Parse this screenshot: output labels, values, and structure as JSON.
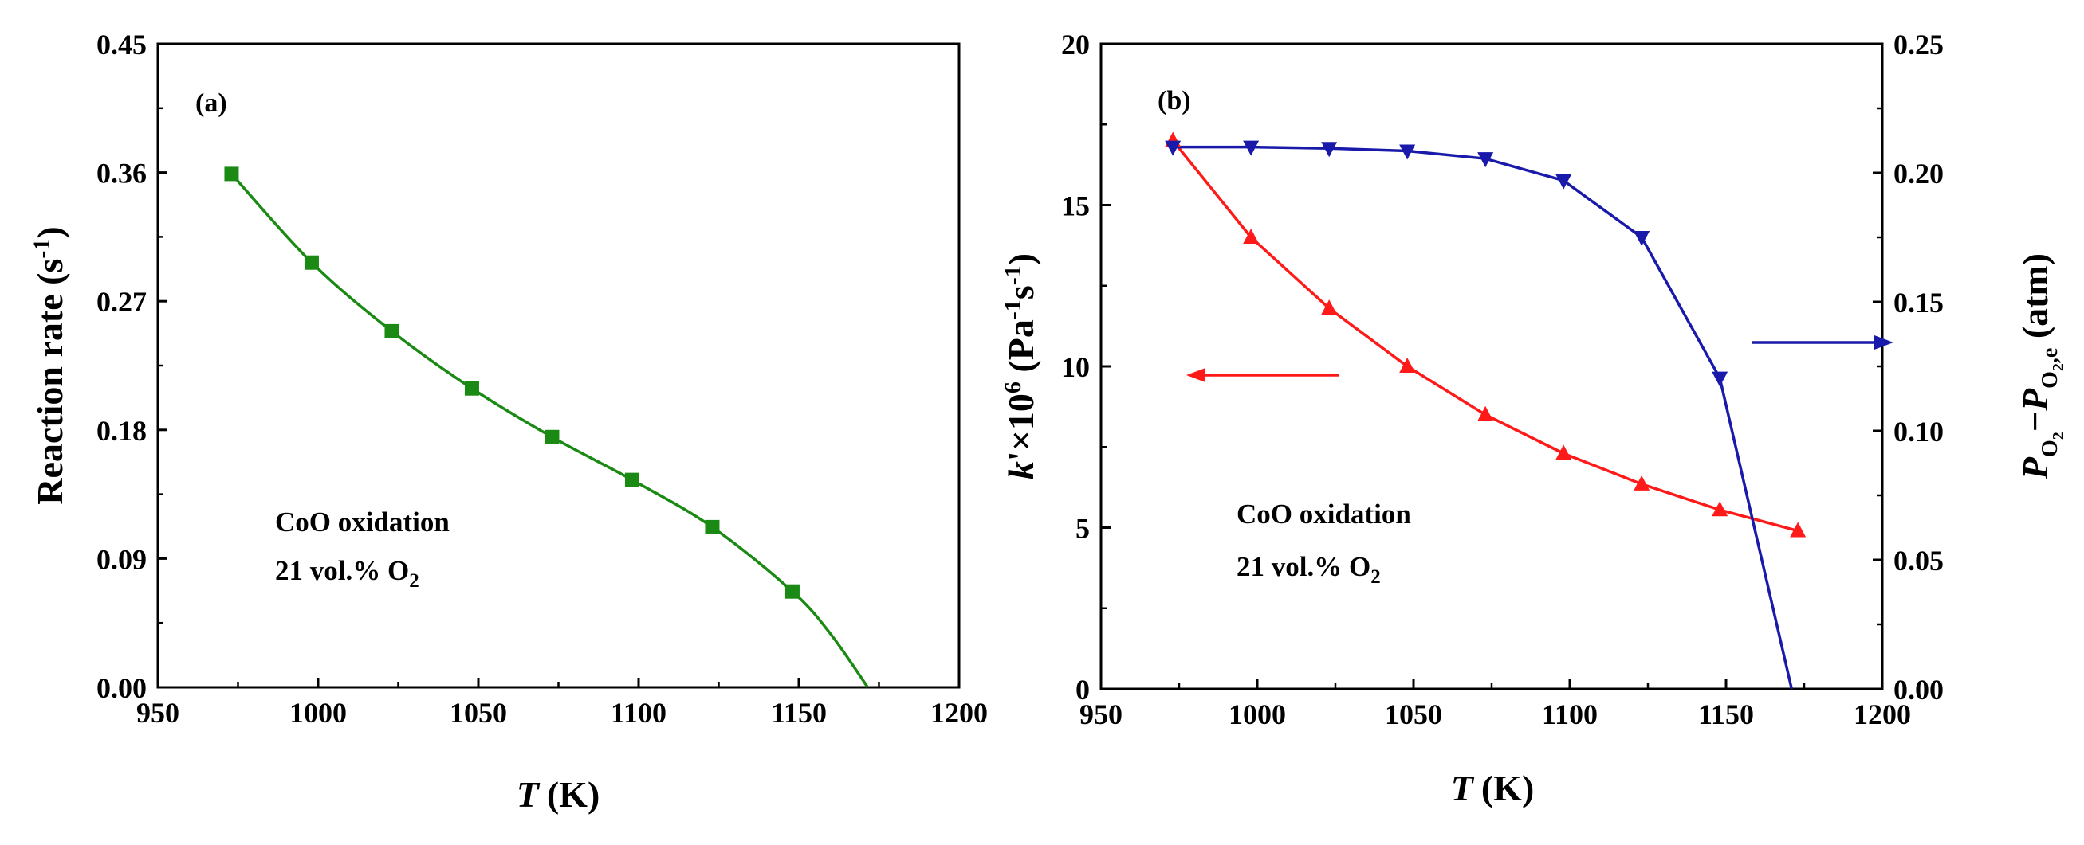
{
  "chart_data": [
    {
      "panel_label": "(a)",
      "type": "line",
      "title": "",
      "xlabel_symbol": "T",
      "xlabel_unit": "(K)",
      "ylabel_main": "Reaction rate (s",
      "ylabel_sup": "-1",
      "ylabel_close": ")",
      "xlim": [
        950,
        1200
      ],
      "ylim": [
        0,
        0.45
      ],
      "xticks": [
        "950",
        "1000",
        "1050",
        "1100",
        "1150",
        "1200"
      ],
      "yticks": [
        "0.00",
        "0.09",
        "0.18",
        "0.27",
        "0.36",
        "0.45"
      ],
      "annotation_line1": "CoO oxidation",
      "annotation_line2": "21 vol.% O",
      "annotation_sub": "2",
      "series": [
        {
          "name": "Reaction rate",
          "color": "#1a8a14",
          "marker": "square",
          "x": [
            973,
            998,
            1023,
            1048,
            1073,
            1098,
            1123,
            1148
          ],
          "y": [
            0.359,
            0.297,
            0.249,
            0.209,
            0.175,
            0.145,
            0.112,
            0.067
          ]
        }
      ],
      "fit_curve": {
        "color": "#1a8a14",
        "x": [
          973,
          998,
          1023,
          1048,
          1073,
          1098,
          1123,
          1148,
          1160,
          1171.5
        ],
        "y": [
          0.359,
          0.297,
          0.249,
          0.209,
          0.175,
          0.145,
          0.112,
          0.067,
          0.037,
          0.0
        ]
      }
    },
    {
      "panel_label": "(b)",
      "type": "line",
      "title": "",
      "xlabel_symbol": "T",
      "xlabel_unit": "(K)",
      "ylabel_left_k": "k",
      "ylabel_left_mid": "'×10",
      "ylabel_left_exp": "6",
      "ylabel_left_unit": " (Pa",
      "ylabel_left_exp2": "-1",
      "ylabel_left_s": "s",
      "ylabel_left_exp3": "-1",
      "ylabel_left_close": ")",
      "ylabel_right_p": "P",
      "ylabel_right_sub": "O",
      "ylabel_right_sub2": "2",
      "ylabel_right_minus": "−",
      "ylabel_right_p2": "P",
      "ylabel_right_sub3": "O",
      "ylabel_right_sub4": "2",
      "ylabel_right_sub5": ",e",
      "ylabel_right_unit": " (atm)",
      "xlim": [
        950,
        1200
      ],
      "ylim_left": [
        0,
        20
      ],
      "ylim_right": [
        0,
        0.25
      ],
      "xticks": [
        "950",
        "1000",
        "1050",
        "1100",
        "1150",
        "1200"
      ],
      "yticks_left": [
        "0",
        "5",
        "10",
        "15",
        "20"
      ],
      "yticks_right": [
        "0.00",
        "0.05",
        "0.10",
        "0.15",
        "0.20",
        "0.25"
      ],
      "annotation_line1": "CoO oxidation",
      "annotation_line2": "21 vol.% O",
      "annotation_sub": "2",
      "series": [
        {
          "name": "k'×10^6",
          "axis": "left",
          "color": "#ff1a1a",
          "marker": "triangle-up",
          "x": [
            973,
            998,
            1023,
            1048,
            1073,
            1098,
            1123,
            1148,
            1173
          ],
          "y": [
            17.0,
            14.0,
            11.8,
            10.0,
            8.5,
            7.3,
            6.35,
            5.55,
            4.9
          ]
        },
        {
          "name": "P_O2 - P_O2,e",
          "axis": "right",
          "color": "#1a1aaa",
          "marker": "triangle-down",
          "x": [
            973,
            998,
            1023,
            1048,
            1073,
            1098,
            1123,
            1148,
            1171
          ],
          "y": [
            0.21,
            0.21,
            0.2095,
            0.2085,
            0.2055,
            0.197,
            0.175,
            0.1205,
            0.0
          ]
        }
      ]
    }
  ]
}
